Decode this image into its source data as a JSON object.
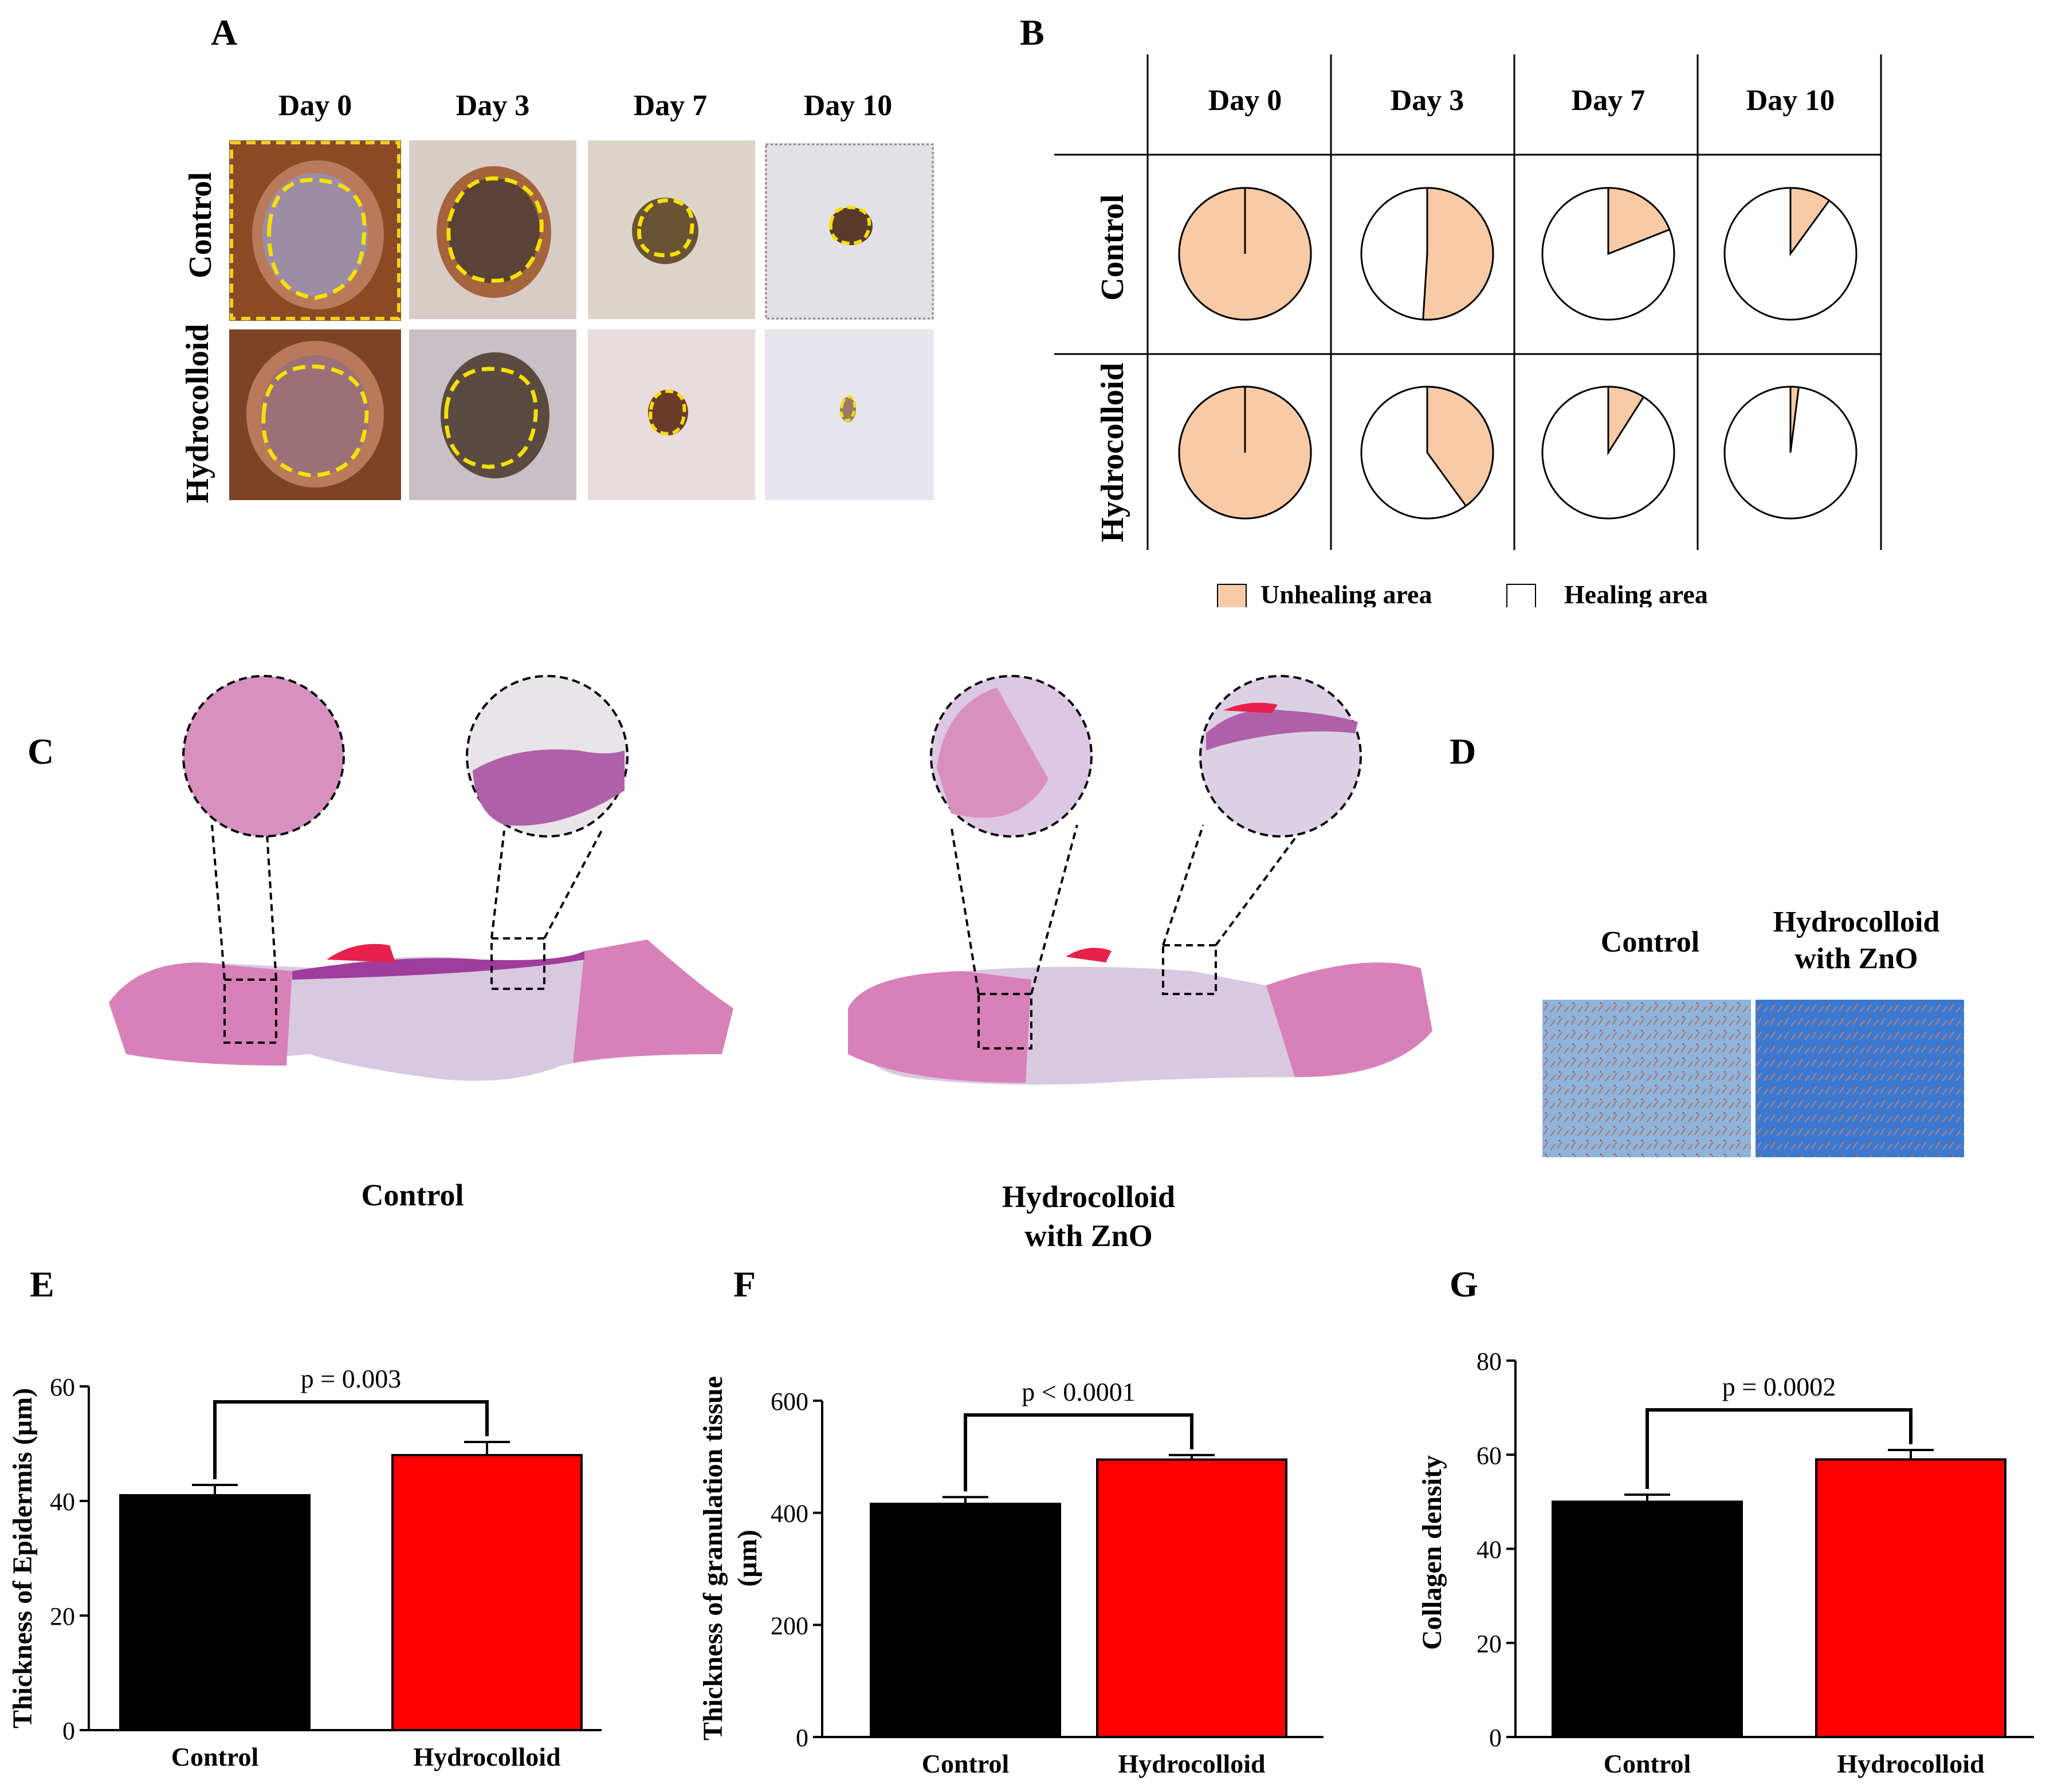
{
  "panelA": {
    "letter": "A",
    "days": [
      "Day 0",
      "Day 3",
      "Day 7",
      "Day 10"
    ],
    "rows": [
      "Control",
      "Hydrocolloid"
    ]
  },
  "panelB": {
    "letter": "B",
    "days": [
      "Day 0",
      "Day 3",
      "Day 7",
      "Day 10"
    ],
    "rows": [
      "Control",
      "Hydrocolloid"
    ],
    "legend": {
      "unhealing": "Unhealing area",
      "healing": "Healing area"
    },
    "colors": {
      "unhealing": "#f8cba6",
      "healing": "#ffffff"
    }
  },
  "panelC": {
    "letter": "C",
    "captions": {
      "control": "Control",
      "treated_line1": "Hydrocolloid",
      "treated_line2": "with ZnO"
    }
  },
  "panelD": {
    "letter": "D",
    "labels": {
      "control": "Control",
      "treated_line1": "Hydrocolloid",
      "treated_line2": "with ZnO"
    }
  },
  "chart_data": [
    {
      "id": "pie-grid",
      "type": "pie",
      "title": "",
      "categories": [
        "Day 0",
        "Day 3",
        "Day 7",
        "Day 10"
      ],
      "series": [
        {
          "name": "Control",
          "unhealing_fraction": [
            1.0,
            0.51,
            0.19,
            0.1
          ]
        },
        {
          "name": "Hydrocolloid",
          "unhealing_fraction": [
            1.0,
            0.4,
            0.09,
            0.02
          ]
        }
      ],
      "legend": [
        "Unhealing area",
        "Healing area"
      ]
    },
    {
      "id": "E",
      "letter": "E",
      "type": "bar",
      "categories": [
        "Control",
        "Hydrocolloid"
      ],
      "values": [
        41,
        48
      ],
      "errors": [
        1.8,
        2.3
      ],
      "colors": [
        "#000000",
        "#ff0000"
      ],
      "ylabel": "Thickness of Epidermis (µm)",
      "ylim": [
        0,
        60
      ],
      "yticks": [
        0,
        20,
        40,
        60
      ],
      "annotation": "p = 0.003"
    },
    {
      "id": "F",
      "letter": "F",
      "type": "bar",
      "categories": [
        "Control",
        "Hydrocolloid"
      ],
      "values": [
        416,
        495
      ],
      "errors": [
        12,
        8
      ],
      "colors": [
        "#000000",
        "#ff0000"
      ],
      "ylabel_line1": "Thickness of granulation tissue",
      "ylabel_line2": "(µm)",
      "ylim": [
        0,
        600
      ],
      "yticks": [
        0,
        200,
        400,
        600
      ],
      "annotation": "p < 0.0001"
    },
    {
      "id": "G",
      "letter": "G",
      "type": "bar",
      "categories": [
        "Control",
        "Hydrocolloid"
      ],
      "values": [
        50,
        59
      ],
      "errors": [
        1.5,
        2.0
      ],
      "colors": [
        "#000000",
        "#ff0000"
      ],
      "ylabel": "Collagen density",
      "ylim": [
        0,
        80
      ],
      "yticks": [
        0,
        20,
        40,
        60,
        80
      ],
      "annotation": "p = 0.0002"
    }
  ]
}
